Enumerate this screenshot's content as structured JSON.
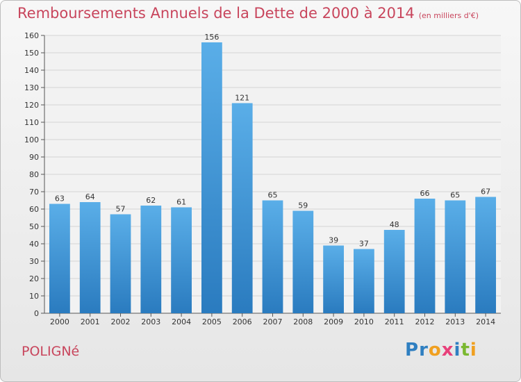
{
  "header": {
    "title": "Remboursements Annuels de la Dette de 2000 à 2014",
    "subtitle": "(en milliers d'€)"
  },
  "footer": {
    "town": "POLIGNé",
    "brand": "Proxiti",
    "brand_letters": [
      {
        "ch": "P",
        "color": "#2f7fc1"
      },
      {
        "ch": "r",
        "color": "#2f7fc1"
      },
      {
        "ch": "o",
        "color": "#f0a020"
      },
      {
        "ch": "x",
        "color": "#e8407a"
      },
      {
        "ch": "i",
        "color": "#2f7fc1"
      },
      {
        "ch": "t",
        "color": "#7ab830"
      },
      {
        "ch": "i",
        "color": "#f0a020"
      }
    ]
  },
  "chart_data": {
    "type": "bar",
    "categories": [
      "2000",
      "2001",
      "2002",
      "2003",
      "2004",
      "2005",
      "2006",
      "2007",
      "2008",
      "2009",
      "2010",
      "2011",
      "2012",
      "2013",
      "2014"
    ],
    "values": [
      63,
      64,
      57,
      62,
      61,
      156,
      121,
      65,
      59,
      39,
      37,
      48,
      66,
      65,
      67
    ],
    "ylim": [
      0,
      160
    ],
    "yticks": [
      0,
      10,
      20,
      30,
      40,
      50,
      60,
      70,
      80,
      90,
      100,
      110,
      120,
      130,
      140,
      150,
      160
    ],
    "grid": true,
    "bar_color_top": "#5aaee8",
    "bar_color_bottom": "#2a7bbf"
  }
}
